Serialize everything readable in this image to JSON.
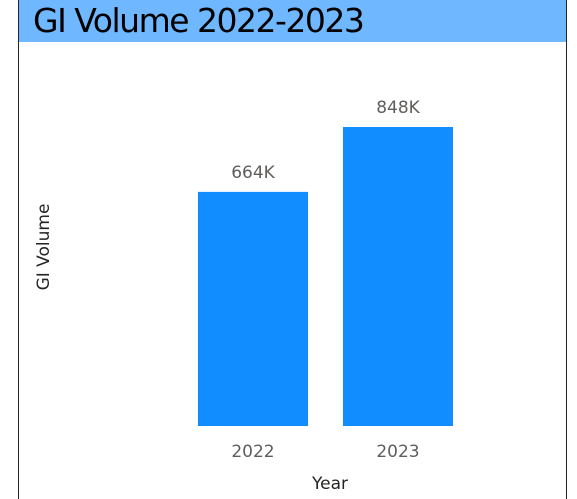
{
  "title": "GI Volume 2022-2023",
  "colors": {
    "title_bar": "#6fb8ff",
    "bar": "#118dff",
    "label": "#605e5c",
    "axis_title": "#252423"
  },
  "chart_data": {
    "type": "bar",
    "title": "GI Volume 2022-2023",
    "xlabel": "Year",
    "ylabel": "GI Volume",
    "categories": [
      "2022",
      "2023"
    ],
    "values": [
      664000,
      848000
    ],
    "data_labels": [
      "664K",
      "848K"
    ],
    "ylim": [
      0,
      1000000
    ],
    "grid": false,
    "legend": "none"
  }
}
